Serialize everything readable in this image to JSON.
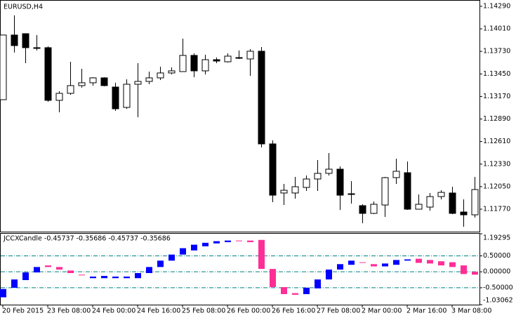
{
  "chart_data": [
    {
      "type": "candlestick",
      "title": "EURUSD,H4",
      "open": [
        1.1313,
        1.13933,
        1.1395,
        1.13776,
        1.13776,
        1.13122,
        1.13209,
        1.13305,
        1.1334,
        1.13401,
        1.13287,
        1.13034,
        1.13322,
        1.13357,
        1.13401,
        1.13462,
        1.13479,
        1.1368,
        1.13488,
        1.13627,
        1.13601,
        1.13653,
        1.13636,
        1.13732,
        1.12581,
        1.11971,
        1.11971,
        1.1204,
        1.12145,
        1.12215,
        1.12267,
        1.11962,
        1.11814,
        1.11718,
        1.11822,
        1.12162,
        1.12223,
        1.1177,
        1.11796,
        1.11927,
        1.11971,
        1.11735,
        1.117
      ],
      "high": [
        1.13933,
        1.14177,
        1.1395,
        1.13933,
        1.13793,
        1.13235,
        1.13601,
        1.13514,
        1.13409,
        1.13409,
        1.1334,
        1.13383,
        1.13584,
        1.13479,
        1.1354,
        1.13531,
        1.13889,
        1.13706,
        1.13688,
        1.13653,
        1.13706,
        1.13741,
        1.13758,
        1.13784,
        1.12625,
        1.12084,
        1.12171,
        1.12189,
        1.1238,
        1.12468,
        1.12302,
        1.12119,
        1.11831,
        1.11866,
        1.12171,
        1.12398,
        1.12363,
        1.11953,
        1.11971,
        1.12005,
        1.12049,
        1.11892,
        1.12171
      ],
      "low": [
        1.1313,
        1.13715,
        1.13584,
        1.13741,
        1.13104,
        1.12973,
        1.13191,
        1.13279,
        1.13305,
        1.13296,
        1.12991,
        1.13017,
        1.12912,
        1.13322,
        1.13374,
        1.13444,
        1.13479,
        1.13409,
        1.13444,
        1.13584,
        1.13592,
        1.13636,
        1.13427,
        1.12537,
        1.11857,
        1.11822,
        1.11901,
        1.11997,
        1.11997,
        1.12189,
        1.11761,
        1.1184,
        1.11596,
        1.11709,
        1.11674,
        1.12084,
        1.11761,
        1.1177,
        1.11753,
        1.11892,
        1.11709,
        1.11552,
        1.11665
      ],
      "close": [
        1.13933,
        1.13802,
        1.13776,
        1.13767,
        1.13122,
        1.13209,
        1.13305,
        1.1334,
        1.13401,
        1.13305,
        1.13017,
        1.13322,
        1.13357,
        1.13401,
        1.13462,
        1.13488,
        1.1368,
        1.13488,
        1.13627,
        1.1361,
        1.13671,
        1.13645,
        1.13732,
        1.12581,
        1.11944,
        1.12005,
        1.12049,
        1.12145,
        1.12215,
        1.12267,
        1.11944,
        1.11953,
        1.11718,
        1.11831,
        1.12162,
        1.12241,
        1.1177,
        1.11831,
        1.11927,
        1.11979,
        1.11718,
        1.117,
        1.12014
      ],
      "up_color": "#ffffff",
      "down_color": "#000000",
      "edge_color": "#000000",
      "ylim": [
        1.11491,
        1.14342
      ],
      "yticks": [
        {
          "value": 1.1429,
          "label": "1.14290"
        },
        {
          "value": 1.1401,
          "label": "1.14010"
        },
        {
          "value": 1.1373,
          "label": "1.13730"
        },
        {
          "value": 1.1345,
          "label": "1.13450"
        },
        {
          "value": 1.1317,
          "label": "1.13170"
        },
        {
          "value": 1.1289,
          "label": "1.12890"
        },
        {
          "value": 1.1261,
          "label": "1.12610"
        },
        {
          "value": 1.1233,
          "label": "1.12330"
        },
        {
          "value": 1.1205,
          "label": "1.12050"
        },
        {
          "value": 1.1177,
          "label": "1.11770"
        }
      ],
      "grid": false
    },
    {
      "type": "candlestick",
      "title": "JCCXCandle -0.45737 -0.35686 -0.45737 -0.35686",
      "categories": [
        "20 Feb 2015",
        null,
        null,
        null,
        "23 Feb 08:00",
        null,
        null,
        null,
        "24 Feb 00:00",
        null,
        null,
        null,
        "24 Feb 16:00",
        null,
        null,
        null,
        "25 Feb 08:00",
        null,
        null,
        null,
        "26 Feb 00:00",
        null,
        null,
        null,
        "26 Feb 16:00",
        null,
        null,
        null,
        "27 Feb 08:00",
        null,
        null,
        null,
        "2 Mar 00:00",
        null,
        null,
        null,
        "2 Mar 16:00",
        null,
        null,
        null,
        "3 Mar 08:00",
        null,
        null
      ],
      "open": [
        -0.8,
        -0.5,
        -0.26,
        -0.02,
        0.2,
        0.15,
        0.04,
        -0.09,
        -0.2,
        -0.2,
        -0.2,
        -0.2,
        -0.2,
        -0.04,
        0.15,
        0.35,
        0.54,
        0.67,
        0.8,
        0.89,
        0.93,
        0.98,
        0.98,
        1.0,
        0.09,
        -0.48,
        -0.67,
        -0.7,
        -0.52,
        -0.24,
        0.07,
        0.22,
        0.3,
        0.24,
        0.17,
        0.22,
        0.35,
        0.41,
        0.37,
        0.33,
        0.3,
        0.2,
        0.0
      ],
      "close": [
        -0.54,
        -0.24,
        -0.02,
        0.15,
        0.15,
        0.07,
        -0.04,
        -0.11,
        -0.15,
        -0.13,
        -0.15,
        -0.15,
        -0.04,
        0.15,
        0.35,
        0.54,
        0.74,
        0.85,
        0.91,
        0.96,
        0.98,
        0.96,
        0.93,
        0.09,
        -0.48,
        -0.7,
        -0.72,
        -0.5,
        -0.24,
        0.07,
        0.24,
        0.35,
        0.28,
        0.17,
        0.26,
        0.37,
        0.39,
        0.28,
        0.26,
        0.2,
        0.15,
        -0.07,
        -0.09
      ],
      "up_color": "#0000ff",
      "down_color": "#ff2e97",
      "ylim": [
        -1.03062,
        1.19295
      ],
      "yticks": [
        {
          "value": 1.19295,
          "label": "1.19295"
        },
        {
          "value": 0.5,
          "label": "0.50000"
        },
        {
          "value": 0,
          "label": "0.00000"
        },
        {
          "value": -0.5,
          "label": "-0.50000"
        },
        {
          "value": -1.03062,
          "label": "-1.03062"
        }
      ],
      "grid": true,
      "grid_color": "#008080"
    }
  ]
}
